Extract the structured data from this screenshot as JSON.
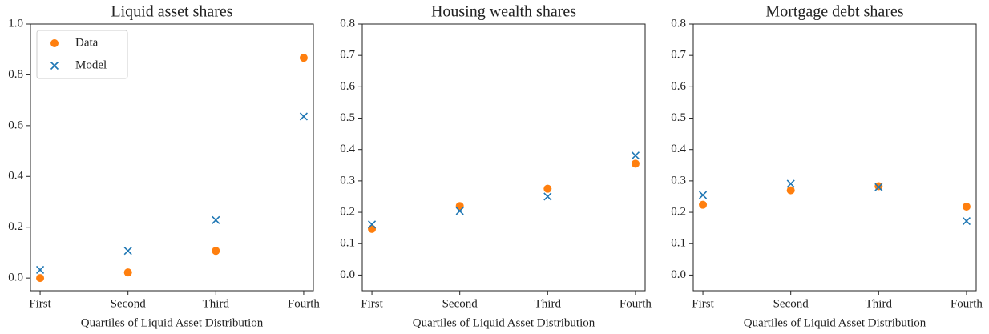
{
  "chart_data": [
    {
      "type": "scatter",
      "title": "Liquid asset shares",
      "xlabel": "Quartiles of Liquid Asset Distribution",
      "categories": [
        "First",
        "Second",
        "Third",
        "Fourth"
      ],
      "series": [
        {
          "name": "Data",
          "color": "#ff7f0e",
          "marker": "o",
          "values": [
            0.0,
            0.022,
            0.107,
            0.867
          ]
        },
        {
          "name": "Model",
          "color": "#1f77b4",
          "marker": "x",
          "values": [
            0.032,
            0.107,
            0.228,
            0.636
          ]
        }
      ],
      "ylim": [
        -0.05,
        1.0
      ],
      "yticks": [
        {
          "value": 0,
          "label": "0.0"
        },
        0.2,
        0.4,
        0.6,
        0.8,
        {
          "value": 1,
          "label": "1.0"
        }
      ],
      "legend": "upper left"
    },
    {
      "type": "scatter",
      "title": "Housing wealth shares",
      "xlabel": "Quartiles of Liquid Asset Distribution",
      "categories": [
        "First",
        "Second",
        "Third",
        "Fourth"
      ],
      "series": [
        {
          "name": "Data",
          "color": "#ff7f0e",
          "marker": "o",
          "values": [
            0.147,
            0.22,
            0.275,
            0.355
          ]
        },
        {
          "name": "Model",
          "color": "#1f77b4",
          "marker": "x",
          "values": [
            0.161,
            0.204,
            0.25,
            0.381
          ]
        }
      ],
      "ylim": [
        -0.05,
        0.8
      ],
      "yticks": [
        {
          "value": 0,
          "label": "0.0"
        },
        0.1,
        0.2,
        0.3,
        0.4,
        0.5,
        0.6,
        0.7,
        0.8
      ]
    },
    {
      "type": "scatter",
      "title": "Mortgage debt shares",
      "xlabel": "Quartiles of Liquid Asset Distribution",
      "categories": [
        "First",
        "Second",
        "Third",
        "Fourth"
      ],
      "series": [
        {
          "name": "Data",
          "color": "#ff7f0e",
          "marker": "o",
          "values": [
            0.224,
            0.27,
            0.283,
            0.218
          ]
        },
        {
          "name": "Model",
          "color": "#1f77b4",
          "marker": "x",
          "values": [
            0.255,
            0.291,
            0.28,
            0.172
          ]
        }
      ],
      "ylim": [
        -0.05,
        0.8
      ],
      "yticks": [
        {
          "value": 0,
          "label": "0.0"
        },
        0.1,
        0.2,
        0.3,
        0.4,
        0.5,
        0.6,
        0.7,
        0.8
      ]
    }
  ]
}
